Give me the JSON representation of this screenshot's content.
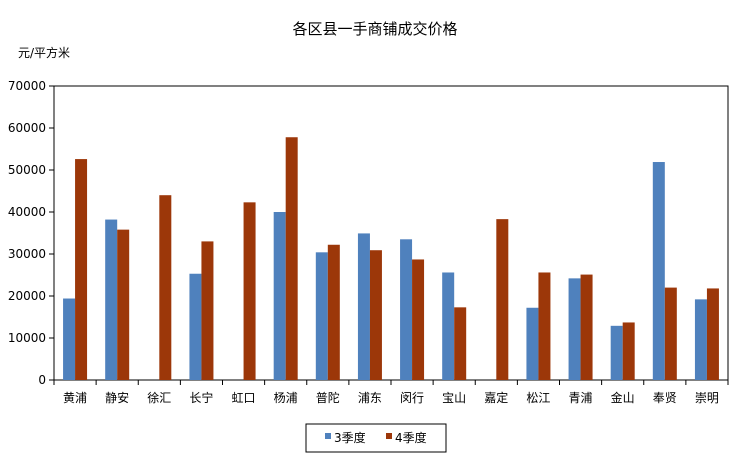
{
  "chart_data": {
    "type": "bar",
    "title": "各区县一手商铺成交价格",
    "ylabel": "元/平方米",
    "xlabel": "",
    "ylim": [
      0,
      70000
    ],
    "yticks": [
      0,
      10000,
      20000,
      30000,
      40000,
      50000,
      60000,
      70000
    ],
    "grid": false,
    "legend": "bottom",
    "categories": [
      "黄浦",
      "静安",
      "徐汇",
      "长宁",
      "虹口",
      "杨浦",
      "普陀",
      "浦东",
      "闵行",
      "宝山",
      "嘉定",
      "松江",
      "青浦",
      "金山",
      "奉贤",
      "崇明"
    ],
    "series": [
      {
        "name": "3季度",
        "color": "#4F81BD",
        "values": [
          19400,
          38200,
          null,
          25300,
          null,
          40000,
          30400,
          34900,
          33500,
          25600,
          null,
          17200,
          24200,
          12900,
          51900,
          19200
        ]
      },
      {
        "name": "4季度",
        "color": "#9C3709",
        "values": [
          52600,
          35800,
          44000,
          33000,
          42300,
          57800,
          32200,
          30900,
          28700,
          17300,
          38300,
          25600,
          25100,
          13700,
          22000,
          21800
        ]
      }
    ]
  }
}
